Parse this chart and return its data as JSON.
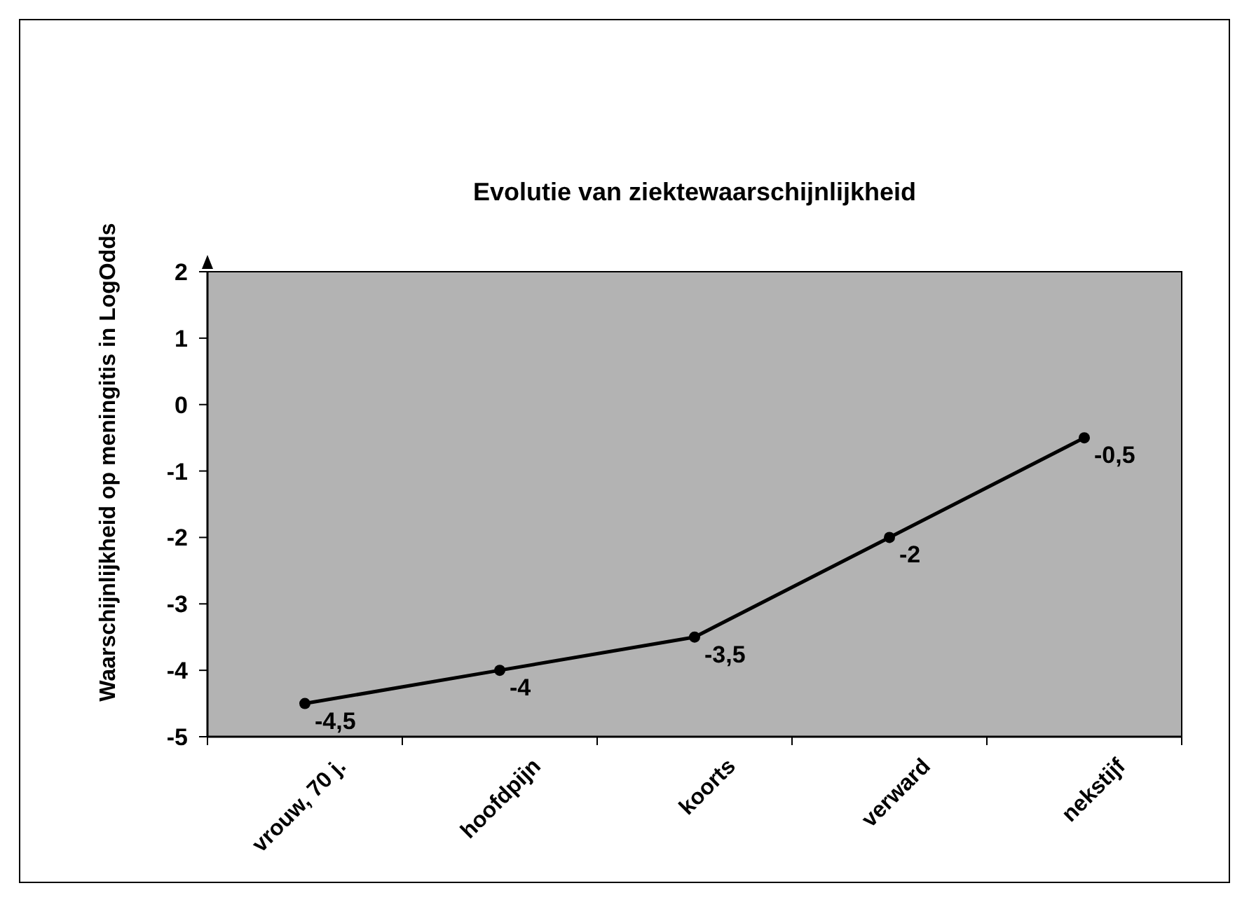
{
  "chart_data": {
    "type": "line",
    "title": "Evolutie van ziektewaarschijnlijkheid",
    "ylabel": "Waarschijnlijkheid op meningitis in LogOdds",
    "categories": [
      "vrouw, 70 j.",
      "hoofdpijn",
      "koorts",
      "verward",
      "nekstijf"
    ],
    "series": [
      {
        "color": "#000000",
        "values": [
          -4.5,
          -4,
          -3.5,
          -2,
          -0.5
        ],
        "value_labels": [
          "-4,5",
          "-4",
          "-3,5",
          "-2",
          "-0,5"
        ]
      }
    ],
    "ylim": [
      -5,
      2
    ],
    "yticks": [
      -5,
      -4,
      -3,
      -2,
      -1,
      0,
      1,
      2
    ],
    "grid": false,
    "marker": "circle",
    "line_style": "solid"
  }
}
